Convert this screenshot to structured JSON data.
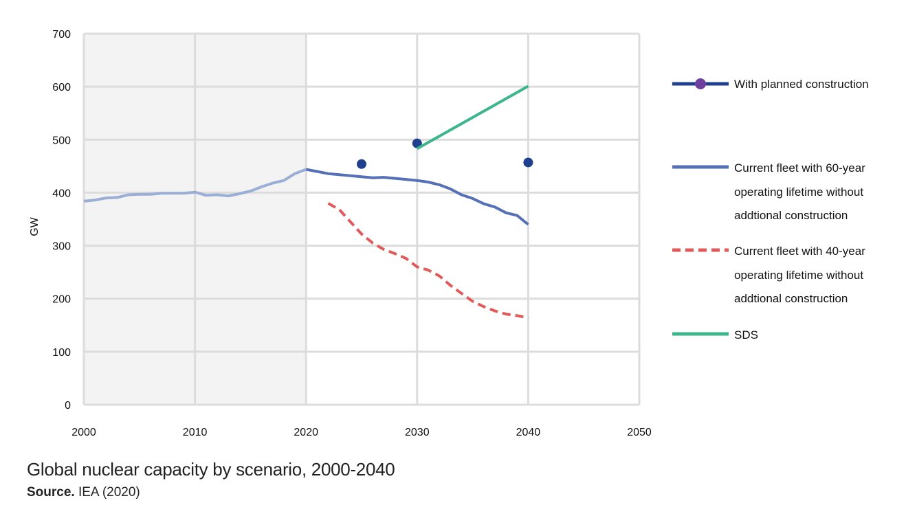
{
  "chart_data": {
    "type": "line",
    "title": "Global nuclear capacity by scenario, 2000-2040",
    "ylabel": "GW",
    "xlabel": "",
    "xlim": [
      2000,
      2050
    ],
    "ylim": [
      0,
      700
    ],
    "x_ticks": [
      "2000",
      "2010",
      "2020",
      "2030",
      "2040",
      "2050"
    ],
    "y_ticks": [
      "0",
      "100",
      "200",
      "300",
      "400",
      "500",
      "600",
      "700"
    ],
    "grid": true,
    "historical_shading": [
      2000,
      2020
    ],
    "legend_position": "right",
    "series": [
      {
        "name": "With planned construction",
        "style": "points",
        "color": "#1f3f8f",
        "marker_legend_color": "#6f3f9f",
        "points": [
          [
            2025,
            454
          ],
          [
            2030,
            493
          ],
          [
            2040,
            457
          ]
        ]
      },
      {
        "name": "Current fleet with 60-year operating lifetime without addtional construction",
        "style": "solid",
        "color": "#5670b8",
        "historical_color": "#9aaed6",
        "points": [
          [
            2000,
            384
          ],
          [
            2001,
            386
          ],
          [
            2002,
            390
          ],
          [
            2003,
            391
          ],
          [
            2004,
            396
          ],
          [
            2005,
            397
          ],
          [
            2006,
            397
          ],
          [
            2007,
            399
          ],
          [
            2008,
            399
          ],
          [
            2009,
            399
          ],
          [
            2010,
            401
          ],
          [
            2011,
            395
          ],
          [
            2012,
            396
          ],
          [
            2013,
            394
          ],
          [
            2014,
            398
          ],
          [
            2015,
            403
          ],
          [
            2016,
            411
          ],
          [
            2017,
            418
          ],
          [
            2018,
            423
          ],
          [
            2019,
            436
          ],
          [
            2020,
            444
          ],
          [
            2021,
            440
          ],
          [
            2022,
            436
          ],
          [
            2023,
            434
          ],
          [
            2024,
            432
          ],
          [
            2025,
            430
          ],
          [
            2026,
            428
          ],
          [
            2027,
            429
          ],
          [
            2028,
            427
          ],
          [
            2029,
            425
          ],
          [
            2030,
            423
          ],
          [
            2031,
            420
          ],
          [
            2032,
            415
          ],
          [
            2033,
            407
          ],
          [
            2034,
            396
          ],
          [
            2035,
            389
          ],
          [
            2036,
            379
          ],
          [
            2037,
            373
          ],
          [
            2038,
            362
          ],
          [
            2039,
            357
          ],
          [
            2040,
            340
          ]
        ]
      },
      {
        "name": "Current fleet with 40-year operating lifetime without addtional construction",
        "style": "dashed",
        "color": "#e05a5a",
        "points": [
          [
            2022,
            380
          ],
          [
            2023,
            368
          ],
          [
            2024,
            345
          ],
          [
            2025,
            322
          ],
          [
            2026,
            305
          ],
          [
            2027,
            293
          ],
          [
            2028,
            285
          ],
          [
            2029,
            276
          ],
          [
            2030,
            260
          ],
          [
            2031,
            254
          ],
          [
            2032,
            243
          ],
          [
            2033,
            225
          ],
          [
            2034,
            210
          ],
          [
            2035,
            195
          ],
          [
            2036,
            185
          ],
          [
            2037,
            177
          ],
          [
            2038,
            171
          ],
          [
            2039,
            168
          ],
          [
            2040,
            164
          ]
        ]
      },
      {
        "name": "SDS",
        "style": "solid",
        "color": "#3bb58a",
        "points": [
          [
            2030,
            483
          ],
          [
            2040,
            601
          ]
        ]
      }
    ]
  },
  "legend": {
    "items": [
      {
        "lines": [
          "With planned construction"
        ]
      },
      {
        "lines": [
          "Current fleet with 60-year",
          "operating lifetime without",
          "addtional construction"
        ]
      },
      {
        "lines": [
          "Current fleet with 40-year",
          "operating lifetime without",
          "addtional construction"
        ]
      },
      {
        "lines": [
          "SDS"
        ]
      }
    ]
  },
  "caption": {
    "title": "Global nuclear capacity by scenario, 2000-2040",
    "source_label": "Source.",
    "source_text": "IEA (2020)"
  }
}
